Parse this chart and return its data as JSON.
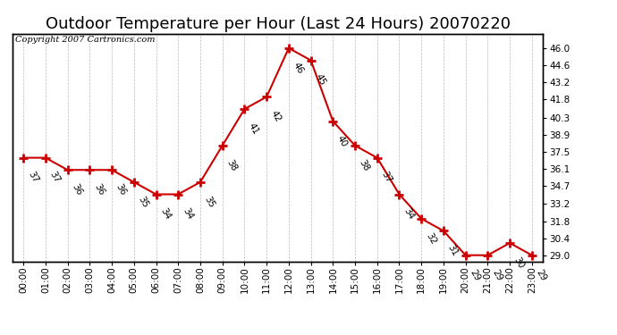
{
  "title": "Outdoor Temperature per Hour (Last 24 Hours) 20070220",
  "copyright_text": "Copyright 2007 Cartronics.com",
  "hours": [
    "00:00",
    "01:00",
    "02:00",
    "03:00",
    "04:00",
    "05:00",
    "06:00",
    "07:00",
    "08:00",
    "09:00",
    "10:00",
    "11:00",
    "12:00",
    "13:00",
    "14:00",
    "15:00",
    "16:00",
    "17:00",
    "18:00",
    "19:00",
    "20:00",
    "21:00",
    "22:00",
    "23:00"
  ],
  "temperatures": [
    37,
    37,
    36,
    36,
    36,
    35,
    34,
    34,
    35,
    38,
    41,
    42,
    46,
    45,
    40,
    38,
    37,
    34,
    32,
    31,
    29,
    29,
    30,
    29
  ],
  "line_color": "#cc0000",
  "marker_color": "#cc0000",
  "bg_color": "#ffffff",
  "grid_color": "#bbbbbb",
  "ylim": [
    28.5,
    47.2
  ],
  "yticks_right": [
    29.0,
    30.4,
    31.8,
    33.2,
    34.7,
    36.1,
    37.5,
    38.9,
    40.3,
    41.8,
    43.2,
    44.6,
    46.0
  ],
  "title_fontsize": 13,
  "tick_fontsize": 7.5,
  "copyright_fontsize": 7,
  "annotation_fontsize": 7.5,
  "annotation_rotation": -60
}
